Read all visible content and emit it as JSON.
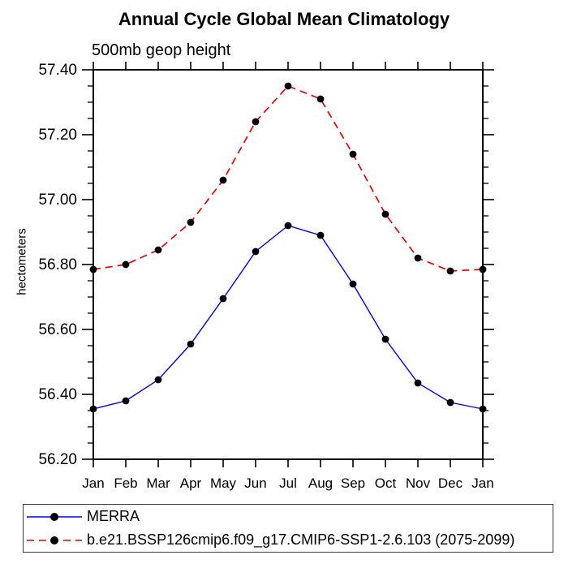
{
  "chart_data": {
    "type": "line",
    "title": "Annual Cycle Global Mean Climatology",
    "subtitle": "500mb geop height",
    "ylabel": "hectometers",
    "categories": [
      "Jan",
      "Feb",
      "Mar",
      "Apr",
      "May",
      "Jun",
      "Jul",
      "Aug",
      "Sep",
      "Oct",
      "Nov",
      "Dec",
      "Jan"
    ],
    "ylim": [
      56.2,
      57.4
    ],
    "y_tick_labels": [
      "56.20",
      "56.40",
      "56.60",
      "56.80",
      "57.00",
      "57.20",
      "57.40"
    ],
    "y_minor_step": 0.05,
    "grid": false,
    "legend_position": "bottom-left-box",
    "series": [
      {
        "name": "MERRA",
        "color": "#0000ee",
        "line_style": "solid",
        "marker": "black-dot",
        "marker_color": "#000000",
        "values": [
          56.355,
          56.38,
          56.445,
          56.555,
          56.695,
          56.84,
          56.92,
          56.89,
          56.74,
          56.57,
          56.435,
          56.375,
          56.355
        ]
      },
      {
        "name": "b.e21.BSSP126cmip6.f09_g17.CMIP6-SSP1-2.6.103 (2075-2099)",
        "color": "#ee0000",
        "line_style": "dashed",
        "marker": "black-dot",
        "marker_color": "#000000",
        "values": [
          56.785,
          56.8,
          56.845,
          56.93,
          57.06,
          57.24,
          57.35,
          57.31,
          57.14,
          56.955,
          56.82,
          56.78,
          56.785
        ]
      }
    ],
    "axis_color": "#000000"
  }
}
